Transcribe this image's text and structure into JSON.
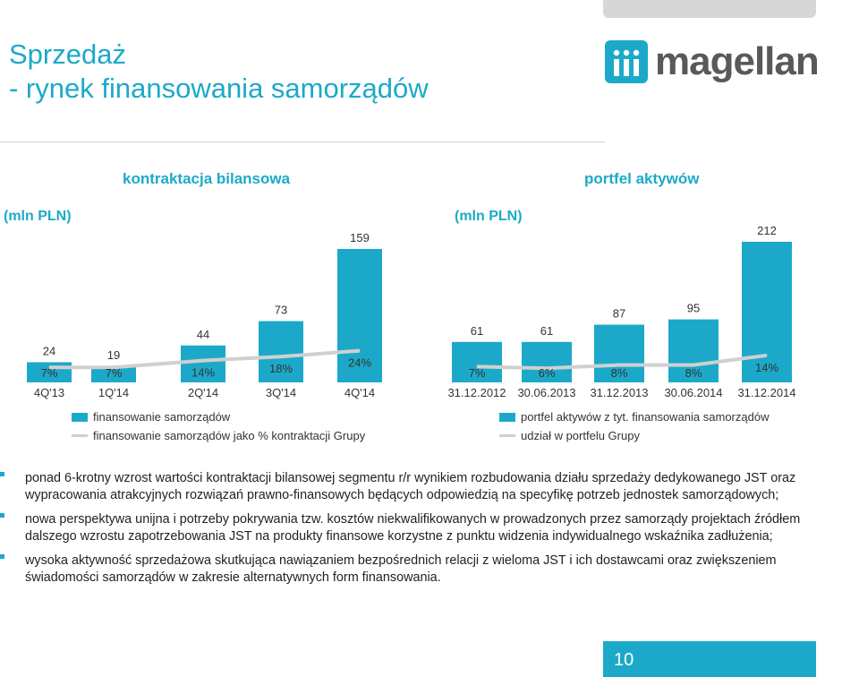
{
  "title": {
    "line1": "Sprzedaż",
    "line2": "- rynek finansowania samorządów"
  },
  "logo": {
    "text": "magellan",
    "mark": "m-tiles-icon"
  },
  "colors": {
    "accent": "#1ca9c9",
    "line": "#d0d0d0",
    "text": "#333333"
  },
  "left_section": {
    "title": "kontraktacja bilansowa",
    "unit": "(mln PLN)"
  },
  "right_section": {
    "title": "portfel aktywów",
    "unit": "(mln PLN)"
  },
  "chart_data": [
    {
      "type": "bar",
      "categories": [
        "4Q'13",
        "1Q'14",
        "2Q'14",
        "3Q'14",
        "4Q'14"
      ],
      "series": [
        {
          "name": "finansowanie samorządów",
          "type": "bar",
          "values": [
            24,
            19,
            44,
            73,
            159
          ],
          "labels": [
            "24",
            "19",
            "44",
            "73",
            "159"
          ]
        },
        {
          "name": "finansowanie samorządów jako % kontraktacji Grupy",
          "type": "line",
          "values": [
            7,
            7,
            14,
            18,
            24
          ],
          "labels": [
            "7%",
            "7%",
            "14%",
            "18%",
            "24%"
          ]
        }
      ]
    },
    {
      "type": "bar",
      "categories": [
        "31.12.2012",
        "30.06.2013",
        "31.12.2013",
        "30.06.2014",
        "31.12.2014"
      ],
      "series": [
        {
          "name": "portfel aktywów z tyt. finansowania samorządów",
          "type": "bar",
          "values": [
            61,
            61,
            87,
            95,
            212
          ],
          "labels": [
            "61",
            "61",
            "87",
            "95",
            "212"
          ]
        },
        {
          "name": "udział w portfelu Grupy",
          "type": "line",
          "values": [
            7,
            6,
            8,
            8,
            14
          ],
          "labels": [
            "7%",
            "6%",
            "8%",
            "8%",
            "14%"
          ]
        }
      ]
    }
  ],
  "bullets": [
    "ponad 6-krotny wzrost wartości kontraktacji bilansowej segmentu r/r wynikiem rozbudowania działu sprzedaży dedykowanego JST oraz wypracowania atrakcyjnych rozwiązań prawno-finansowych będących odpowiedzią na specyfikę potrzeb jednostek samorządowych;",
    "nowa perspektywa unijna i potrzeby pokrywania tzw. kosztów niekwalifikowanych w prowadzonych przez samorządy projektach źródłem dalszego wzrostu zapotrzebowania JST na produkty finansowe korzystne z punktu widzenia indywidualnego wskaźnika zadłużenia;",
    "wysoka aktywność sprzedażowa skutkująca nawiązaniem bezpośrednich relacji z wieloma JST i ich dostawcami oraz zwiększeniem świadomości samorządów w zakresie alternatywnych form finansowania."
  ],
  "page_number": "10"
}
